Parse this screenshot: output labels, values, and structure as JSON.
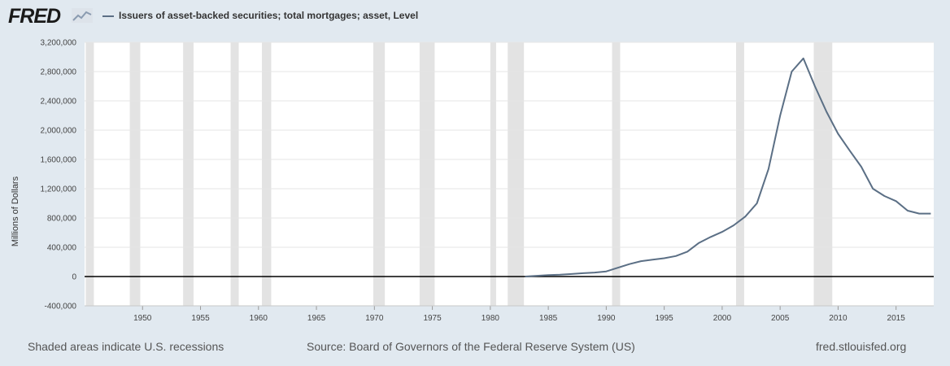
{
  "header": {
    "logo_text": "FRED",
    "logo_icon": "fred-chart-icon",
    "legend_label": "Issuers of asset-backed securities; total mortgages; asset, Level",
    "series_color": "#5b6f85"
  },
  "footer": {
    "recession_note": "Shaded areas indicate U.S. recessions",
    "source": "Source: Board of Governors of the Federal Reserve System (US)",
    "site": "fred.stlouisfed.org"
  },
  "colors": {
    "background": "#e1e9f0",
    "plot_background": "#ffffff",
    "recession_shade": "#e3e3e3",
    "gridline": "#e6e6e6",
    "zero_line": "#000000"
  },
  "chart_data": {
    "type": "line",
    "title": "",
    "xlabel": "",
    "ylabel": "Millions of Dollars",
    "xlim": [
      1945.0,
      2018.25
    ],
    "ylim": [
      -400000,
      3200000
    ],
    "grid": true,
    "legend_position": "top-left",
    "y_ticks": [
      -400000,
      0,
      400000,
      800000,
      1200000,
      1600000,
      2000000,
      2400000,
      2800000,
      3200000
    ],
    "y_tick_labels": [
      "-400,000",
      "0",
      "400,000",
      "800,000",
      "1,200,000",
      "1,600,000",
      "2,000,000",
      "2,400,000",
      "2,800,000",
      "3,200,000"
    ],
    "x_ticks": [
      1950,
      1955,
      1960,
      1965,
      1970,
      1975,
      1980,
      1985,
      1990,
      1995,
      2000,
      2005,
      2010,
      2015
    ],
    "x_tick_labels": [
      "1950",
      "1955",
      "1960",
      "1965",
      "1970",
      "1975",
      "1980",
      "1985",
      "1990",
      "1995",
      "2000",
      "2005",
      "2010",
      "2015"
    ],
    "recessions": [
      [
        1945.1,
        1945.8
      ],
      [
        1948.9,
        1949.8
      ],
      [
        1953.5,
        1954.4
      ],
      [
        1957.6,
        1958.3
      ],
      [
        1960.3,
        1961.1
      ],
      [
        1969.9,
        1970.9
      ],
      [
        1973.9,
        1975.2
      ],
      [
        1980.0,
        1980.5
      ],
      [
        1981.5,
        1982.9
      ],
      [
        1990.5,
        1991.2
      ],
      [
        2001.2,
        2001.9
      ],
      [
        2007.9,
        2009.5
      ]
    ],
    "series": [
      {
        "color": "#5b6f85",
        "x": [
          1983,
          1984,
          1985,
          1986,
          1987,
          1988,
          1989,
          1990,
          1991,
          1992,
          1993,
          1994,
          1995,
          1996,
          1997,
          1998,
          1999,
          2000,
          2001,
          2002,
          2003,
          2004,
          2005,
          2006,
          2007,
          2008,
          2009,
          2010,
          2011,
          2012,
          2013,
          2014,
          2015,
          2016,
          2017,
          2018
        ],
        "values": [
          0,
          10000,
          20000,
          25000,
          35000,
          45000,
          55000,
          70000,
          120000,
          170000,
          210000,
          230000,
          250000,
          280000,
          340000,
          460000,
          540000,
          610000,
          700000,
          820000,
          1000000,
          1470000,
          2200000,
          2800000,
          2980000,
          2600000,
          2250000,
          1950000,
          1720000,
          1500000,
          1200000,
          1100000,
          1030000,
          900000,
          860000,
          860000
        ]
      }
    ]
  }
}
